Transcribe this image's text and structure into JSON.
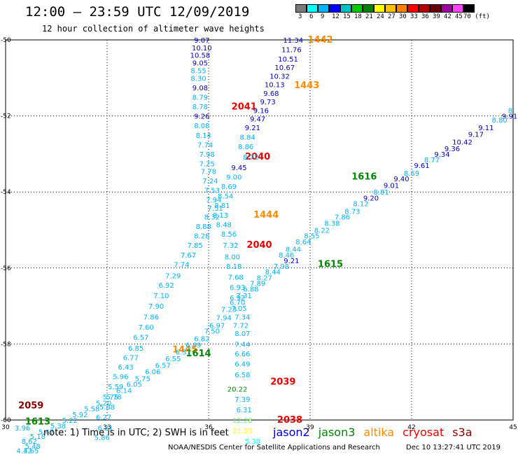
{
  "header": {
    "title": "12:00 – 23:59 UTC 12/09/2019",
    "subtitle": "12 hour collection of altimeter wave heights"
  },
  "scale": {
    "labels": [
      "3",
      "6",
      "9",
      "12",
      "15",
      "18",
      "21",
      "24",
      "27",
      "30",
      "33",
      "36",
      "39",
      "42",
      "45",
      "70 (ft)"
    ],
    "colors": [
      "#7a7a7a",
      "#00ffff",
      "#00b4ff",
      "#0000ff",
      "#00c4c4",
      "#00cc00",
      "#008000",
      "#ffff00",
      "#ffc000",
      "#ff8000",
      "#ff0000",
      "#b40000",
      "#6a0000",
      "#a000a0",
      "#ff40ff",
      "#000000"
    ]
  },
  "footer": {
    "note": "note: 1) Time is in UTC; 2) SWH is in feet",
    "credit": "NOAA/NESDIS Center for Satellite Applications and Research",
    "stamp": "Dec 10 13:27:41 UTC 2019"
  },
  "legend": [
    {
      "name": "jason2",
      "color": "#0000cc"
    },
    {
      "name": "jason3",
      "color": "#008800"
    },
    {
      "name": "altika",
      "color": "#ff8c00"
    },
    {
      "name": "cryosat",
      "color": "#ee0000"
    },
    {
      "name": "s3a",
      "color": "#880000"
    }
  ],
  "chart_data": {
    "type": "scatter",
    "xlim": [
      30,
      45
    ],
    "ylim": [
      -60,
      -50
    ],
    "xticks": [
      "30",
      "33",
      "36",
      "39",
      "42",
      "45"
    ],
    "yticks": [
      "-50",
      "-52",
      "-54",
      "-56",
      "-58",
      "-60"
    ],
    "grid": true,
    "labels": [
      {
        "x": 39.3,
        "y": -50.0,
        "t": "1442",
        "c": "#ff8c00",
        "b": 1
      },
      {
        "x": 38.9,
        "y": -51.2,
        "t": "1443",
        "c": "#ff8c00",
        "b": 1
      },
      {
        "x": 37.05,
        "y": -51.76,
        "t": "2041",
        "c": "#ee0000",
        "b": 1
      },
      {
        "x": 37.45,
        "y": -53.08,
        "t": "2040",
        "c": "#ee0000",
        "b": 1
      },
      {
        "x": 37.5,
        "y": -55.4,
        "t": "2040",
        "c": "#ee0000",
        "b": 1
      },
      {
        "x": 37.7,
        "y": -54.6,
        "t": "1444",
        "c": "#ff8c00",
        "b": 1
      },
      {
        "x": 38.2,
        "y": -59.0,
        "t": "2039",
        "c": "#ee0000",
        "b": 1
      },
      {
        "x": 38.4,
        "y": -60.0,
        "t": "2038",
        "c": "#ee0000",
        "b": 1
      },
      {
        "x": 40.6,
        "y": -53.6,
        "t": "1616",
        "c": "#008800",
        "b": 1
      },
      {
        "x": 39.6,
        "y": -55.9,
        "t": "1615",
        "c": "#008800",
        "b": 1
      },
      {
        "x": 35.3,
        "y": -58.15,
        "t": "1445",
        "c": "#ff8c00",
        "b": 1
      },
      {
        "x": 35.7,
        "y": -58.25,
        "t": "1614",
        "c": "#008800",
        "b": 1
      },
      {
        "x": 30.75,
        "y": -59.62,
        "t": "2059",
        "c": "#880000",
        "b": 1
      },
      {
        "x": 30.95,
        "y": -60.05,
        "t": "1613",
        "c": "#008800",
        "b": 1
      },
      {
        "x": 38.5,
        "y": -50.0,
        "t": "11.34",
        "c": "#0000cc"
      },
      {
        "x": 38.45,
        "y": -50.25,
        "t": "11.76",
        "c": "#0000cc"
      },
      {
        "x": 38.35,
        "y": -50.5,
        "t": "10.51",
        "c": "#0000cc"
      },
      {
        "x": 38.25,
        "y": -50.72,
        "t": "10.67",
        "c": "#0000cc"
      },
      {
        "x": 38.1,
        "y": -50.95,
        "t": "10.32",
        "c": "#0000cc"
      },
      {
        "x": 37.95,
        "y": -51.17,
        "t": "10.13",
        "c": "#0000cc"
      },
      {
        "x": 37.85,
        "y": -51.4,
        "t": "9.68",
        "c": "#0000cc"
      },
      {
        "x": 37.75,
        "y": -51.62,
        "t": "9.73",
        "c": "#0000cc"
      },
      {
        "x": 37.55,
        "y": -51.85,
        "t": "9.16",
        "c": "#0000cc"
      },
      {
        "x": 37.45,
        "y": -52.07,
        "t": "9.47",
        "c": "#0000cc"
      },
      {
        "x": 37.3,
        "y": -52.3,
        "t": "9.21",
        "c": "#0000cc"
      },
      {
        "x": 37.15,
        "y": -52.55,
        "t": "8.84",
        "c": "#00b4ff"
      },
      {
        "x": 37.1,
        "y": -52.8,
        "t": "8.86",
        "c": "#00b4ff"
      },
      {
        "x": 37.25,
        "y": -53.08,
        "t": "8.72",
        "c": "#00b4ff"
      },
      {
        "x": 36.9,
        "y": -53.35,
        "t": "9.45",
        "c": "#0000cc"
      },
      {
        "x": 36.75,
        "y": -53.6,
        "t": "9.00",
        "c": "#00b4ff"
      },
      {
        "x": 36.6,
        "y": -53.85,
        "t": "8.69",
        "c": "#00b4ff"
      },
      {
        "x": 36.5,
        "y": -54.1,
        "t": "8.54",
        "c": "#00b4ff"
      },
      {
        "x": 36.4,
        "y": -54.35,
        "t": "8.81",
        "c": "#00b4ff"
      },
      {
        "x": 36.35,
        "y": -54.6,
        "t": "8.13",
        "c": "#00b4ff"
      },
      {
        "x": 36.45,
        "y": -54.85,
        "t": "8.48",
        "c": "#00b4ff"
      },
      {
        "x": 36.6,
        "y": -55.1,
        "t": "8.56",
        "c": "#00b4ff"
      },
      {
        "x": 36.65,
        "y": -55.4,
        "t": "7.32",
        "c": "#00b4ff"
      },
      {
        "x": 36.7,
        "y": -55.7,
        "t": "8.00",
        "c": "#00b4ff"
      },
      {
        "x": 36.75,
        "y": -55.95,
        "t": "8.18",
        "c": "#00b4ff"
      },
      {
        "x": 36.8,
        "y": -56.23,
        "t": "7.68",
        "c": "#00b4ff"
      },
      {
        "x": 36.85,
        "y": -56.5,
        "t": "6.93",
        "c": "#00b4ff"
      },
      {
        "x": 36.85,
        "y": -56.78,
        "t": "6.92",
        "c": "#00b4ff"
      },
      {
        "x": 36.9,
        "y": -57.05,
        "t": "7.05",
        "c": "#00b4ff"
      },
      {
        "x": 37.0,
        "y": -57.28,
        "t": "7.34",
        "c": "#00b4ff"
      },
      {
        "x": 36.95,
        "y": -57.5,
        "t": "7.72",
        "c": "#00b4ff"
      },
      {
        "x": 37.0,
        "y": -57.72,
        "t": "8.07",
        "c": "#00b4ff"
      },
      {
        "x": 37.0,
        "y": -58.0,
        "t": "7.44",
        "c": "#00b4ff"
      },
      {
        "x": 37.0,
        "y": -58.25,
        "t": "6.66",
        "c": "#00b4ff"
      },
      {
        "x": 37.0,
        "y": -58.52,
        "t": "6.49",
        "c": "#00b4ff"
      },
      {
        "x": 37.0,
        "y": -58.8,
        "t": "6.58",
        "c": "#00b4ff"
      },
      {
        "x": 36.85,
        "y": -59.18,
        "t": "20.22",
        "c": "#008800"
      },
      {
        "x": 37.0,
        "y": -59.45,
        "t": "7.39",
        "c": "#00b4ff"
      },
      {
        "x": 37.05,
        "y": -59.72,
        "t": "6.31",
        "c": "#00b4ff"
      },
      {
        "x": 37.0,
        "y": -60.0,
        "t": "12.28",
        "c": "#66ff66"
      },
      {
        "x": 37.0,
        "y": -60.28,
        "t": "21.53",
        "c": "#ffff00"
      },
      {
        "x": 37.3,
        "y": -60.55,
        "t": "5.38",
        "c": "#00ffff"
      },
      {
        "x": 35.8,
        "y": -50.0,
        "t": "9.07",
        "c": "#0000cc"
      },
      {
        "x": 35.8,
        "y": -50.2,
        "t": "10.10",
        "c": "#0000cc"
      },
      {
        "x": 35.75,
        "y": -50.4,
        "t": "10.58",
        "c": "#0000cc"
      },
      {
        "x": 35.75,
        "y": -50.6,
        "t": "9.05",
        "c": "#0000cc"
      },
      {
        "x": 35.7,
        "y": -50.8,
        "t": "8.55",
        "c": "#00b4ff"
      },
      {
        "x": 35.7,
        "y": -51.0,
        "t": "8.30",
        "c": "#00b4ff"
      },
      {
        "x": 35.75,
        "y": -51.25,
        "t": "9.08",
        "c": "#0000cc"
      },
      {
        "x": 35.75,
        "y": -51.5,
        "t": "8.79",
        "c": "#00b4ff"
      },
      {
        "x": 35.75,
        "y": -51.75,
        "t": "8.78",
        "c": "#00b4ff"
      },
      {
        "x": 35.8,
        "y": -52.0,
        "t": "9.26",
        "c": "#0000cc"
      },
      {
        "x": 35.8,
        "y": -52.25,
        "t": "8.08",
        "c": "#00b4ff"
      },
      {
        "x": 35.85,
        "y": -52.5,
        "t": "8.14",
        "c": "#00b4ff"
      },
      {
        "x": 35.9,
        "y": -52.75,
        "t": "7.74",
        "c": "#00b4ff"
      },
      {
        "x": 35.95,
        "y": -53.0,
        "t": "7.98",
        "c": "#00b4ff"
      },
      {
        "x": 35.95,
        "y": -53.25,
        "t": "7.25",
        "c": "#00b4ff"
      },
      {
        "x": 36.0,
        "y": -53.45,
        "t": "7.78",
        "c": "#00b4ff"
      },
      {
        "x": 36.05,
        "y": -53.7,
        "t": "7.24",
        "c": "#00b4ff"
      },
      {
        "x": 36.1,
        "y": -53.95,
        "t": "7.53",
        "c": "#00b4ff"
      },
      {
        "x": 36.15,
        "y": -54.2,
        "t": "7.94",
        "c": "#00b4ff"
      },
      {
        "x": 36.2,
        "y": -54.42,
        "t": "7.51",
        "c": "#00b4ff"
      },
      {
        "x": 36.1,
        "y": -54.65,
        "t": "8.32",
        "c": "#00b4ff"
      },
      {
        "x": 35.85,
        "y": -54.9,
        "t": "8.88",
        "c": "#00b4ff"
      },
      {
        "x": 35.8,
        "y": -55.15,
        "t": "8.28",
        "c": "#00b4ff"
      },
      {
        "x": 35.6,
        "y": -55.4,
        "t": "7.85",
        "c": "#00b4ff"
      },
      {
        "x": 35.4,
        "y": -55.65,
        "t": "7.67",
        "c": "#00b4ff"
      },
      {
        "x": 35.2,
        "y": -55.9,
        "t": "7.74",
        "c": "#00b4ff"
      },
      {
        "x": 34.95,
        "y": -56.2,
        "t": "7.29",
        "c": "#00b4ff"
      },
      {
        "x": 34.75,
        "y": -56.45,
        "t": "6.92",
        "c": "#00b4ff"
      },
      {
        "x": 34.6,
        "y": -56.72,
        "t": "7.10",
        "c": "#00b4ff"
      },
      {
        "x": 34.45,
        "y": -57.0,
        "t": "7.90",
        "c": "#00b4ff"
      },
      {
        "x": 34.3,
        "y": -57.28,
        "t": "7.86",
        "c": "#00b4ff"
      },
      {
        "x": 34.15,
        "y": -57.55,
        "t": "7.60",
        "c": "#00b4ff"
      },
      {
        "x": 34.0,
        "y": -57.82,
        "t": "6.57",
        "c": "#00b4ff"
      },
      {
        "x": 33.85,
        "y": -58.1,
        "t": "6.85",
        "c": "#00b4ff"
      },
      {
        "x": 33.7,
        "y": -58.35,
        "t": "6.77",
        "c": "#00b4ff"
      },
      {
        "x": 33.55,
        "y": -58.6,
        "t": "6.43",
        "c": "#00b4ff"
      },
      {
        "x": 33.4,
        "y": -58.85,
        "t": "5.96",
        "c": "#00b4ff"
      },
      {
        "x": 33.25,
        "y": -59.12,
        "t": "5.59",
        "c": "#00b4ff"
      },
      {
        "x": 33.1,
        "y": -59.38,
        "t": "5.75",
        "c": "#00b4ff"
      },
      {
        "x": 33.0,
        "y": -59.65,
        "t": "5.88",
        "c": "#00b4ff"
      },
      {
        "x": 32.9,
        "y": -59.92,
        "t": "6.27",
        "c": "#00b4ff"
      },
      {
        "x": 32.95,
        "y": -60.2,
        "t": "6.21",
        "c": "#00b4ff"
      },
      {
        "x": 32.85,
        "y": -60.45,
        "t": "5.86",
        "c": "#00b4ff"
      },
      {
        "x": 44.95,
        "y": -51.85,
        "t": "8.",
        "c": "#00b4ff"
      },
      {
        "x": 44.9,
        "y": -52.0,
        "t": "9.91",
        "c": "#0000cc"
      },
      {
        "x": 44.6,
        "y": -52.1,
        "t": "8.80",
        "c": "#00b4ff"
      },
      {
        "x": 44.2,
        "y": -52.3,
        "t": "9.11",
        "c": "#0000cc"
      },
      {
        "x": 43.9,
        "y": -52.48,
        "t": "9.17",
        "c": "#0000cc"
      },
      {
        "x": 43.5,
        "y": -52.68,
        "t": "10.42",
        "c": "#0000cc"
      },
      {
        "x": 43.2,
        "y": -52.85,
        "t": "9.36",
        "c": "#0000cc"
      },
      {
        "x": 42.9,
        "y": -53.0,
        "t": "9.34",
        "c": "#0000cc"
      },
      {
        "x": 42.6,
        "y": -53.15,
        "t": "8.77",
        "c": "#00b4ff"
      },
      {
        "x": 42.3,
        "y": -53.3,
        "t": "9.61",
        "c": "#0000cc"
      },
      {
        "x": 42.0,
        "y": -53.5,
        "t": "8.69",
        "c": "#00b4ff"
      },
      {
        "x": 41.7,
        "y": -53.65,
        "t": "9.40",
        "c": "#0000cc"
      },
      {
        "x": 41.4,
        "y": -53.82,
        "t": "9.01",
        "c": "#0000cc"
      },
      {
        "x": 41.1,
        "y": -54.0,
        "t": "8.81",
        "c": "#00b4ff"
      },
      {
        "x": 40.8,
        "y": -54.15,
        "t": "9.20",
        "c": "#0000cc"
      },
      {
        "x": 40.5,
        "y": -54.3,
        "t": "8.12",
        "c": "#00b4ff"
      },
      {
        "x": 40.25,
        "y": -54.5,
        "t": "8.73",
        "c": "#00b4ff"
      },
      {
        "x": 39.95,
        "y": -54.65,
        "t": "7.86",
        "c": "#00b4ff"
      },
      {
        "x": 39.65,
        "y": -54.82,
        "t": "8.38",
        "c": "#00b4ff"
      },
      {
        "x": 39.35,
        "y": -55.0,
        "t": "8.22",
        "c": "#00b4ff"
      },
      {
        "x": 39.05,
        "y": -55.15,
        "t": "8.55",
        "c": "#00b4ff"
      },
      {
        "x": 38.8,
        "y": -55.3,
        "t": "8.64",
        "c": "#00b4ff"
      },
      {
        "x": 38.5,
        "y": -55.5,
        "t": "8.44",
        "c": "#00b4ff"
      },
      {
        "x": 38.3,
        "y": -55.65,
        "t": "8.46",
        "c": "#00b4ff"
      },
      {
        "x": 38.45,
        "y": -55.8,
        "t": "9.21",
        "c": "#0000cc"
      },
      {
        "x": 38.15,
        "y": -55.95,
        "t": "7.98",
        "c": "#00b4ff"
      },
      {
        "x": 37.9,
        "y": -56.1,
        "t": "8.44",
        "c": "#00b4ff"
      },
      {
        "x": 37.65,
        "y": -56.25,
        "t": "8.27",
        "c": "#00b4ff"
      },
      {
        "x": 37.45,
        "y": -56.4,
        "t": "7.89",
        "c": "#00b4ff"
      },
      {
        "x": 37.25,
        "y": -56.55,
        "t": "6.88",
        "c": "#00b4ff"
      },
      {
        "x": 37.05,
        "y": -56.72,
        "t": "7.31",
        "c": "#00b4ff"
      },
      {
        "x": 36.85,
        "y": -56.9,
        "t": "6.70",
        "c": "#00b4ff"
      },
      {
        "x": 36.6,
        "y": -57.08,
        "t": "7.23",
        "c": "#00b4ff"
      },
      {
        "x": 36.45,
        "y": -57.3,
        "t": "7.94",
        "c": "#00b4ff"
      },
      {
        "x": 36.25,
        "y": -57.5,
        "t": "6.97",
        "c": "#00b4ff"
      },
      {
        "x": 36.1,
        "y": -57.65,
        "t": "7.50",
        "c": "#00b4ff"
      },
      {
        "x": 35.8,
        "y": -57.85,
        "t": "6.82",
        "c": "#00b4ff"
      },
      {
        "x": 35.55,
        "y": -58.02,
        "t": "6.39",
        "c": "#00b4ff"
      },
      {
        "x": 35.25,
        "y": -58.2,
        "t": "6.31",
        "c": "#00b4ff"
      },
      {
        "x": 34.95,
        "y": -58.38,
        "t": "6.55",
        "c": "#00b4ff"
      },
      {
        "x": 34.65,
        "y": -58.55,
        "t": "6.57",
        "c": "#00b4ff"
      },
      {
        "x": 34.35,
        "y": -58.72,
        "t": "6.06",
        "c": "#00b4ff"
      },
      {
        "x": 34.05,
        "y": -58.9,
        "t": "5.75",
        "c": "#00b4ff"
      },
      {
        "x": 33.8,
        "y": -59.05,
        "t": "6.05",
        "c": "#00b4ff"
      },
      {
        "x": 33.5,
        "y": -59.22,
        "t": "6.14",
        "c": "#00b4ff"
      },
      {
        "x": 33.2,
        "y": -59.38,
        "t": "5.78",
        "c": "#00b4ff"
      },
      {
        "x": 32.9,
        "y": -59.55,
        "t": "5.20",
        "c": "#00b4ff"
      },
      {
        "x": 32.55,
        "y": -59.7,
        "t": "5.58",
        "c": "#00b4ff"
      },
      {
        "x": 32.2,
        "y": -59.85,
        "t": "5.92",
        "c": "#00b4ff"
      },
      {
        "x": 31.9,
        "y": -60.0,
        "t": "5.22",
        "c": "#00b4ff"
      },
      {
        "x": 31.55,
        "y": -60.15,
        "t": "5.38",
        "c": "#00b4ff"
      },
      {
        "x": 31.2,
        "y": -60.3,
        "t": "5.47",
        "c": "#00b4ff"
      },
      {
        "x": 30.95,
        "y": -60.42,
        "t": "5.18",
        "c": "#00b4ff"
      },
      {
        "x": 30.7,
        "y": -60.55,
        "t": "8.62",
        "c": "#00b4ff"
      },
      {
        "x": 30.8,
        "y": -60.68,
        "t": "5.48",
        "c": "#00b4ff"
      },
      {
        "x": 30.5,
        "y": -60.2,
        "t": "3.96",
        "c": "#00b4ff"
      },
      {
        "x": 30.55,
        "y": -60.8,
        "t": "4.32",
        "c": "#00b4ff"
      },
      {
        "x": 30.75,
        "y": -60.8,
        "t": "4.65",
        "c": "#00b4ff"
      }
    ]
  }
}
